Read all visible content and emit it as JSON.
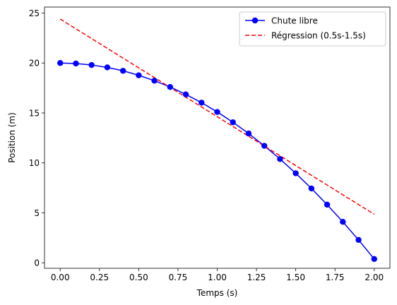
{
  "chart_data": {
    "type": "line",
    "title": "",
    "xlabel": "Temps (s)",
    "ylabel": "Position (m)",
    "xlim": [
      -0.1,
      2.1
    ],
    "ylim": [
      -0.55,
      25.6
    ],
    "xticks": [
      0.0,
      0.25,
      0.5,
      0.75,
      1.0,
      1.25,
      1.5,
      1.75,
      2.0
    ],
    "xtick_labels": [
      "0.00",
      "0.25",
      "0.50",
      "0.75",
      "1.00",
      "1.25",
      "1.50",
      "1.75",
      "2.00"
    ],
    "yticks": [
      0,
      5,
      10,
      15,
      20,
      25
    ],
    "ytick_labels": [
      "0",
      "5",
      "10",
      "15",
      "20",
      "25"
    ],
    "grid": false,
    "legend_position": "top-right",
    "series": [
      {
        "name": "Chute libre",
        "style": "solid-with-markers",
        "color": "#0000ff",
        "x": [
          0.0,
          0.1,
          0.2,
          0.3,
          0.4,
          0.5,
          0.6,
          0.7,
          0.8,
          0.9,
          1.0,
          1.1,
          1.2,
          1.3,
          1.4,
          1.5,
          1.6,
          1.7,
          1.8,
          1.9,
          2.0
        ],
        "y": [
          20.0,
          19.95,
          19.8,
          19.56,
          19.22,
          18.77,
          18.23,
          17.6,
          16.86,
          16.03,
          15.1,
          14.07,
          12.94,
          11.71,
          10.39,
          8.96,
          7.44,
          5.82,
          4.1,
          2.29,
          0.38
        ]
      },
      {
        "name": "Régression (0.5s-1.5s)",
        "style": "dashed",
        "color": "#ff0000",
        "x": [
          0.0,
          2.0
        ],
        "y": [
          24.4,
          4.85
        ]
      }
    ]
  }
}
